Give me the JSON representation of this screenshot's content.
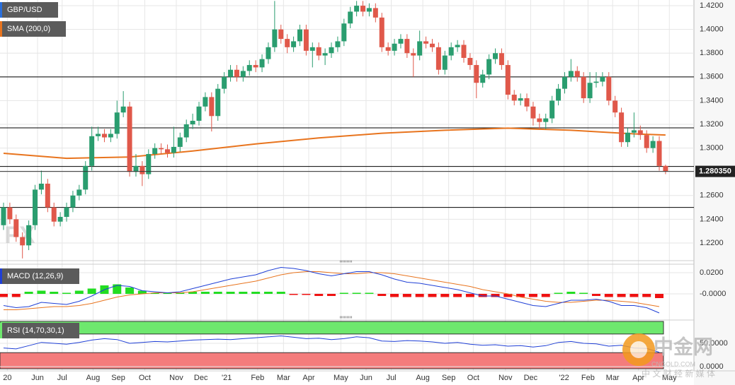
{
  "chart_data": {
    "type": "candlestick",
    "xlim": [
      -0.56,
      109.5
    ],
    "xticks": [
      {
        "value": 0.6,
        "label": "20"
      },
      {
        "value": 5.4,
        "label": "Jun"
      },
      {
        "value": 9.3,
        "label": "Jul"
      },
      {
        "value": 14.2,
        "label": "Aug"
      },
      {
        "value": 18.2,
        "label": "Sep"
      },
      {
        "value": 22.4,
        "label": "Oct"
      },
      {
        "value": 27.4,
        "label": "Nov"
      },
      {
        "value": 31.3,
        "label": "Dec"
      },
      {
        "value": 35.4,
        "label": "'21"
      },
      {
        "value": 40.3,
        "label": "Feb"
      },
      {
        "value": 44.4,
        "label": "Mar"
      },
      {
        "value": 48.4,
        "label": "Apr"
      },
      {
        "value": 53.5,
        "label": "May"
      },
      {
        "value": 57.5,
        "label": "Jun"
      },
      {
        "value": 61.5,
        "label": "Jul"
      },
      {
        "value": 66.5,
        "label": "Aug"
      },
      {
        "value": 70.6,
        "label": "Sep"
      },
      {
        "value": 74.5,
        "label": "Oct"
      },
      {
        "value": 79.6,
        "label": "Nov"
      },
      {
        "value": 83.6,
        "label": "Dec"
      },
      {
        "value": 88.9,
        "label": "'22"
      },
      {
        "value": 92.7,
        "label": "Feb"
      },
      {
        "value": 96.6,
        "label": "Mar"
      },
      {
        "value": 100.7,
        "label": "Apr"
      },
      {
        "value": 105.6,
        "label": "May"
      }
    ],
    "ylim": [
      1.2057,
      1.4248
    ],
    "yticks": [
      {
        "value": 1.42,
        "label": "1.4200"
      },
      {
        "value": 1.4,
        "label": "1.4000"
      },
      {
        "value": 1.38,
        "label": "1.3800"
      },
      {
        "value": 1.36,
        "label": "1.3600"
      },
      {
        "value": 1.34,
        "label": "1.3400"
      },
      {
        "value": 1.32,
        "label": "1.3200"
      },
      {
        "value": 1.3,
        "label": "1.3000"
      },
      {
        "value": 1.28,
        "label": "1.2800"
      },
      {
        "value": 1.26,
        "label": "1.2600"
      },
      {
        "value": 1.24,
        "label": "1.2400"
      },
      {
        "value": 1.22,
        "label": "1.2200"
      }
    ],
    "grid": true,
    "levels": [
      1.36,
      1.317,
      1.2845,
      1.25
    ],
    "level_color": "#000000",
    "last_price": {
      "value": 1.28035,
      "label": "1.280350"
    },
    "price": {
      "name": "GBP/USD",
      "up_color": "#2a9d6f",
      "down_color": "#e0584a",
      "ohlc": [
        [
          1.235,
          1.254,
          1.231,
          1.25
        ],
        [
          1.25,
          1.254,
          1.236,
          1.24
        ],
        [
          1.24,
          1.244,
          1.221,
          1.225
        ],
        [
          1.225,
          1.229,
          1.207,
          1.218
        ],
        [
          1.218,
          1.239,
          1.214,
          1.235
        ],
        [
          1.235,
          1.269,
          1.231,
          1.265
        ],
        [
          1.265,
          1.281,
          1.261,
          1.27
        ],
        [
          1.27,
          1.274,
          1.246,
          1.25
        ],
        [
          1.25,
          1.254,
          1.234,
          1.238
        ],
        [
          1.238,
          1.246,
          1.234,
          1.242
        ],
        [
          1.242,
          1.254,
          1.238,
          1.25
        ],
        [
          1.25,
          1.264,
          1.246,
          1.26
        ],
        [
          1.26,
          1.269,
          1.256,
          1.265
        ],
        [
          1.265,
          1.289,
          1.261,
          1.285
        ],
        [
          1.285,
          1.318,
          1.281,
          1.31
        ],
        [
          1.31,
          1.318,
          1.306,
          1.312
        ],
        [
          1.312,
          1.316,
          1.305,
          1.309
        ],
        [
          1.309,
          1.316,
          1.305,
          1.312
        ],
        [
          1.312,
          1.34,
          1.308,
          1.33
        ],
        [
          1.33,
          1.348,
          1.326,
          1.335
        ],
        [
          1.335,
          1.339,
          1.276,
          1.28
        ],
        [
          1.28,
          1.295,
          1.276,
          1.285
        ],
        [
          1.285,
          1.289,
          1.268,
          1.278
        ],
        [
          1.278,
          1.299,
          1.274,
          1.295
        ],
        [
          1.295,
          1.304,
          1.291,
          1.3
        ],
        [
          1.3,
          1.304,
          1.295,
          1.299
        ],
        [
          1.299,
          1.303,
          1.292,
          1.296
        ],
        [
          1.296,
          1.318,
          1.292,
          1.301
        ],
        [
          1.301,
          1.313,
          1.297,
          1.309
        ],
        [
          1.309,
          1.324,
          1.305,
          1.32
        ],
        [
          1.32,
          1.329,
          1.316,
          1.323
        ],
        [
          1.323,
          1.339,
          1.319,
          1.335
        ],
        [
          1.335,
          1.347,
          1.331,
          1.343
        ],
        [
          1.343,
          1.347,
          1.314,
          1.327
        ],
        [
          1.327,
          1.354,
          1.323,
          1.35
        ],
        [
          1.35,
          1.364,
          1.346,
          1.36
        ],
        [
          1.36,
          1.37,
          1.356,
          1.366
        ],
        [
          1.366,
          1.37,
          1.356,
          1.36
        ],
        [
          1.36,
          1.369,
          1.356,
          1.365
        ],
        [
          1.365,
          1.374,
          1.361,
          1.37
        ],
        [
          1.37,
          1.374,
          1.364,
          1.368
        ],
        [
          1.368,
          1.379,
          1.364,
          1.375
        ],
        [
          1.375,
          1.389,
          1.371,
          1.385
        ],
        [
          1.385,
          1.424,
          1.381,
          1.4
        ],
        [
          1.4,
          1.404,
          1.388,
          1.392
        ],
        [
          1.392,
          1.396,
          1.38,
          1.385
        ],
        [
          1.385,
          1.394,
          1.381,
          1.39
        ],
        [
          1.39,
          1.404,
          1.386,
          1.4
        ],
        [
          1.4,
          1.404,
          1.378,
          1.382
        ],
        [
          1.382,
          1.389,
          1.368,
          1.385
        ],
        [
          1.385,
          1.389,
          1.374,
          1.378
        ],
        [
          1.378,
          1.384,
          1.37,
          1.38
        ],
        [
          1.38,
          1.389,
          1.376,
          1.385
        ],
        [
          1.385,
          1.394,
          1.381,
          1.39
        ],
        [
          1.39,
          1.409,
          1.386,
          1.405
        ],
        [
          1.405,
          1.419,
          1.401,
          1.415
        ],
        [
          1.415,
          1.424,
          1.411,
          1.42
        ],
        [
          1.42,
          1.424,
          1.411,
          1.415
        ],
        [
          1.415,
          1.422,
          1.411,
          1.418
        ],
        [
          1.418,
          1.422,
          1.406,
          1.41
        ],
        [
          1.41,
          1.414,
          1.381,
          1.385
        ],
        [
          1.385,
          1.389,
          1.378,
          1.382
        ],
        [
          1.382,
          1.392,
          1.378,
          1.388
        ],
        [
          1.388,
          1.396,
          1.384,
          1.392
        ],
        [
          1.392,
          1.396,
          1.376,
          1.38
        ],
        [
          1.38,
          1.384,
          1.36,
          1.378
        ],
        [
          1.378,
          1.399,
          1.374,
          1.39
        ],
        [
          1.39,
          1.394,
          1.384,
          1.388
        ],
        [
          1.388,
          1.392,
          1.381,
          1.385
        ],
        [
          1.385,
          1.389,
          1.362,
          1.366
        ],
        [
          1.366,
          1.382,
          1.362,
          1.378
        ],
        [
          1.378,
          1.389,
          1.374,
          1.385
        ],
        [
          1.385,
          1.391,
          1.381,
          1.387
        ],
        [
          1.387,
          1.391,
          1.372,
          1.376
        ],
        [
          1.376,
          1.38,
          1.366,
          1.37
        ],
        [
          1.37,
          1.374,
          1.342,
          1.355
        ],
        [
          1.355,
          1.366,
          1.351,
          1.362
        ],
        [
          1.362,
          1.379,
          1.358,
          1.375
        ],
        [
          1.375,
          1.384,
          1.371,
          1.38
        ],
        [
          1.38,
          1.384,
          1.366,
          1.37
        ],
        [
          1.37,
          1.374,
          1.341,
          1.345
        ],
        [
          1.345,
          1.349,
          1.336,
          1.34
        ],
        [
          1.34,
          1.346,
          1.336,
          1.342
        ],
        [
          1.342,
          1.346,
          1.331,
          1.335
        ],
        [
          1.335,
          1.339,
          1.319,
          1.325
        ],
        [
          1.325,
          1.329,
          1.316,
          1.322
        ],
        [
          1.322,
          1.329,
          1.316,
          1.325
        ],
        [
          1.325,
          1.344,
          1.321,
          1.34
        ],
        [
          1.34,
          1.354,
          1.336,
          1.35
        ],
        [
          1.35,
          1.364,
          1.346,
          1.36
        ],
        [
          1.36,
          1.375,
          1.356,
          1.365
        ],
        [
          1.365,
          1.369,
          1.356,
          1.36
        ],
        [
          1.36,
          1.364,
          1.338,
          1.342
        ],
        [
          1.342,
          1.364,
          1.338,
          1.355
        ],
        [
          1.355,
          1.364,
          1.351,
          1.356
        ],
        [
          1.356,
          1.364,
          1.352,
          1.36
        ],
        [
          1.36,
          1.364,
          1.336,
          1.34
        ],
        [
          1.34,
          1.344,
          1.326,
          1.33
        ],
        [
          1.33,
          1.334,
          1.301,
          1.305
        ],
        [
          1.305,
          1.317,
          1.301,
          1.313
        ],
        [
          1.313,
          1.33,
          1.309,
          1.315
        ],
        [
          1.315,
          1.319,
          1.307,
          1.311
        ],
        [
          1.311,
          1.315,
          1.296,
          1.3
        ],
        [
          1.3,
          1.31,
          1.296,
          1.306
        ],
        [
          1.306,
          1.31,
          1.281,
          1.285
        ],
        [
          1.285,
          1.286,
          1.278,
          1.2805
        ]
      ]
    },
    "sma": {
      "name": "SMA (200,0)",
      "color": "#e8741e",
      "x": [
        0,
        10,
        20,
        30,
        40,
        50,
        60,
        70,
        80,
        90,
        100,
        105
      ],
      "values": [
        1.2956,
        1.2914,
        1.2925,
        1.2975,
        1.3035,
        1.3085,
        1.3125,
        1.315,
        1.3168,
        1.315,
        1.312,
        1.311
      ]
    },
    "macd": {
      "name": "MACD (12,26,9)",
      "ylim": [
        -0.024,
        0.0273
      ],
      "yticks": [
        {
          "value": 0.02,
          "label": "0.0200"
        },
        {
          "value": 0,
          "label": "-0.0000"
        }
      ],
      "x": [
        0,
        2,
        4,
        6,
        8,
        10,
        12,
        14,
        16,
        18,
        20,
        22,
        24,
        26,
        28,
        30,
        32,
        34,
        36,
        38,
        40,
        42,
        44,
        46,
        48,
        50,
        52,
        54,
        56,
        58,
        60,
        62,
        64,
        66,
        68,
        70,
        72,
        74,
        76,
        78,
        80,
        82,
        84,
        86,
        88,
        90,
        92,
        94,
        96,
        98,
        100,
        102,
        104
      ],
      "macd": {
        "color": "#1f3fd6",
        "values": [
          -0.011,
          -0.013,
          -0.012,
          -0.008,
          -0.009,
          -0.01,
          -0.007,
          -0.002,
          0.004,
          0.008,
          0.007,
          0.003,
          0.002,
          0.001,
          0.002,
          0.005,
          0.008,
          0.011,
          0.014,
          0.016,
          0.018,
          0.022,
          0.025,
          0.024,
          0.022,
          0.019,
          0.017,
          0.019,
          0.021,
          0.021,
          0.018,
          0.014,
          0.011,
          0.01,
          0.008,
          0.006,
          0.004,
          0.001,
          -0.002,
          -0.002,
          -0.005,
          -0.008,
          -0.011,
          -0.012,
          -0.009,
          -0.006,
          -0.006,
          -0.005,
          -0.007,
          -0.011,
          -0.011,
          -0.013,
          -0.018
        ]
      },
      "signal": {
        "color": "#e8741e",
        "values": [
          -0.015,
          -0.015,
          -0.014,
          -0.013,
          -0.012,
          -0.012,
          -0.011,
          -0.009,
          -0.006,
          -0.003,
          -0.001,
          0.0,
          0.001,
          0.001,
          0.001,
          0.002,
          0.004,
          0.006,
          0.008,
          0.01,
          0.012,
          0.015,
          0.018,
          0.02,
          0.021,
          0.021,
          0.02,
          0.019,
          0.019,
          0.02,
          0.02,
          0.019,
          0.017,
          0.015,
          0.013,
          0.011,
          0.009,
          0.007,
          0.004,
          0.002,
          0.0,
          -0.003,
          -0.005,
          -0.007,
          -0.008,
          -0.008,
          -0.007,
          -0.006,
          -0.006,
          -0.007,
          -0.008,
          -0.01,
          -0.012
        ]
      },
      "histogram": {
        "up_color": "#22dd22",
        "down_color": "#ee1111",
        "values": [
          -0.003,
          -0.003,
          0.002,
          0.003,
          0.002,
          0.001,
          0.003,
          0.005,
          0.008,
          0.009,
          0.006,
          0.003,
          0.001,
          0.001,
          0.001,
          0.002,
          0.002,
          0.002,
          0.002,
          0.002,
          0.002,
          0.002,
          0.002,
          -0.001,
          -0.001,
          -0.002,
          -0.002,
          0.001,
          0.001,
          0.001,
          -0.002,
          -0.003,
          -0.003,
          -0.003,
          -0.003,
          -0.003,
          -0.003,
          -0.003,
          -0.003,
          -0.003,
          -0.003,
          -0.003,
          -0.003,
          -0.003,
          0.001,
          0.002,
          0.001,
          -0.002,
          -0.003,
          -0.003,
          -0.003,
          -0.003,
          -0.004
        ]
      }
    },
    "rsi": {
      "name": "RSI (14,70,30,1)",
      "ylim": [
        -4.5,
        97
      ],
      "yticks": [
        {
          "value": 50,
          "label": "50.0000"
        },
        {
          "value": 0,
          "label": "0.0000"
        }
      ],
      "overbought": 70,
      "oversold": 30,
      "overbought_color": "#6ee86e",
      "oversold_color": "#f47c7c",
      "color": "#1f3fd6",
      "x": [
        0,
        2,
        4,
        6,
        8,
        10,
        12,
        14,
        16,
        18,
        20,
        22,
        24,
        26,
        28,
        30,
        32,
        34,
        36,
        38,
        40,
        42,
        44,
        46,
        48,
        50,
        52,
        54,
        56,
        58,
        60,
        62,
        64,
        66,
        68,
        70,
        72,
        74,
        76,
        78,
        80,
        82,
        84,
        86,
        88,
        90,
        92,
        94,
        96,
        98,
        100,
        102,
        104
      ],
      "values": [
        40,
        38,
        45,
        52,
        50,
        48,
        52,
        57,
        60,
        58,
        50,
        52,
        54,
        53,
        55,
        57,
        58,
        59,
        58,
        60,
        62,
        64,
        66,
        63,
        60,
        61,
        58,
        60,
        64,
        62,
        55,
        54,
        56,
        55,
        53,
        50,
        52,
        48,
        46,
        47,
        44,
        45,
        42,
        45,
        52,
        54,
        50,
        49,
        44,
        46,
        40,
        39,
        31
      ]
    }
  },
  "watermark": {
    "logo": "FX",
    "brand": "中金网",
    "site": "CNGOLD.COM",
    "tagline": "中 文 财 经 新 媒 体"
  }
}
